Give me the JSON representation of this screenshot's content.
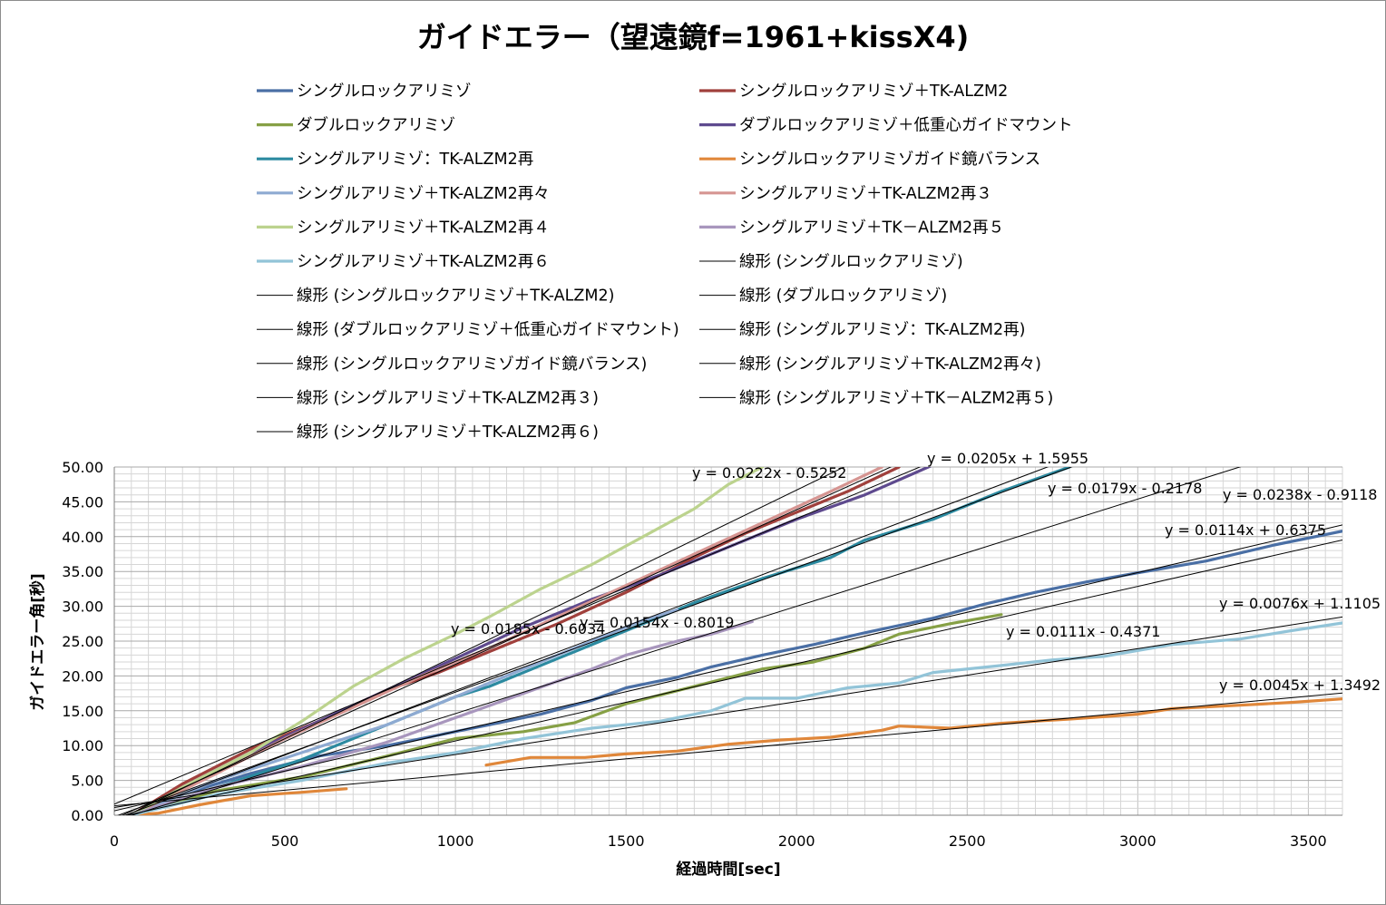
{
  "chart_data": {
    "type": "line",
    "title": "ガイドエラー（望遠鏡f=1961+kissX4)",
    "xlabel": "経過時間[sec]",
    "ylabel": "ガイドエラー角[秒]",
    "xlim": [
      0,
      3600
    ],
    "ylim": [
      0,
      50
    ],
    "x_ticks": [
      "0",
      "500",
      "1000",
      "1500",
      "2000",
      "2500",
      "3000",
      "3500"
    ],
    "y_ticks": [
      "0.00",
      "5.00",
      "10.00",
      "15.00",
      "20.00",
      "25.00",
      "30.00",
      "35.00",
      "40.00",
      "45.00",
      "50.00"
    ],
    "grid": true,
    "legend_position": "top",
    "series": [
      {
        "name": "シングルロックアリミゾ",
        "color": "#4a6fa5",
        "points": [
          [
            50,
            0
          ],
          [
            200,
            3
          ],
          [
            400,
            6
          ],
          [
            600,
            8.5
          ],
          [
            800,
            10
          ],
          [
            1000,
            12
          ],
          [
            1100,
            13
          ],
          [
            1250,
            14.5
          ],
          [
            1400,
            16.5
          ],
          [
            1500,
            18.3
          ],
          [
            1650,
            19.8
          ],
          [
            1750,
            21.3
          ],
          [
            1900,
            23
          ],
          [
            2050,
            24.5
          ],
          [
            2200,
            26.2
          ],
          [
            2400,
            28.3
          ],
          [
            2550,
            30.3
          ],
          [
            2700,
            32
          ],
          [
            2850,
            33.5
          ],
          [
            3000,
            34.8
          ],
          [
            3200,
            36.5
          ],
          [
            3400,
            38.8
          ],
          [
            3600,
            40.8
          ]
        ]
      },
      {
        "name": "シングルロックアリミゾ＋TK-ALZM2",
        "color": "#a0403c",
        "points": [
          [
            50,
            0
          ],
          [
            200,
            4.5
          ],
          [
            400,
            9.5
          ],
          [
            600,
            13.5
          ],
          [
            800,
            18
          ],
          [
            950,
            20.5
          ],
          [
            1100,
            23.5
          ],
          [
            1300,
            27.5
          ],
          [
            1500,
            32
          ],
          [
            1700,
            37
          ],
          [
            1850,
            40.5
          ],
          [
            2000,
            43.5
          ],
          [
            2150,
            46.5
          ],
          [
            2300,
            50
          ]
        ]
      },
      {
        "name": "ダブルロックアリミゾ",
        "color": "#86a045",
        "points": [
          [
            50,
            0
          ],
          [
            300,
            3.5
          ],
          [
            550,
            5.5
          ],
          [
            800,
            8.5
          ],
          [
            1000,
            11
          ],
          [
            1200,
            12
          ],
          [
            1350,
            13.3
          ],
          [
            1500,
            16
          ],
          [
            1700,
            18.5
          ],
          [
            1900,
            21
          ],
          [
            2050,
            22
          ],
          [
            2200,
            24
          ],
          [
            2300,
            26
          ],
          [
            2450,
            27.5
          ],
          [
            2600,
            28.8
          ]
        ]
      },
      {
        "name": "ダブルロックアリミゾ＋低重心ガイドマウント",
        "color": "#5e4a8e",
        "points": [
          [
            50,
            0
          ],
          [
            200,
            4
          ],
          [
            400,
            9
          ],
          [
            600,
            13.5
          ],
          [
            800,
            18
          ],
          [
            1000,
            22.5
          ],
          [
            1200,
            27
          ],
          [
            1400,
            31
          ],
          [
            1600,
            34.5
          ],
          [
            1800,
            38.5
          ],
          [
            2000,
            42.5
          ],
          [
            2200,
            46
          ],
          [
            2400,
            50.3
          ]
        ]
      },
      {
        "name": "シングルアリミゾ：TK-ALZM2再",
        "color": "#2c8aa0",
        "points": [
          [
            50,
            0
          ],
          [
            300,
            4
          ],
          [
            550,
            8
          ],
          [
            800,
            13
          ],
          [
            1000,
            17
          ],
          [
            1100,
            18.5
          ],
          [
            1300,
            22.5
          ],
          [
            1500,
            26.5
          ],
          [
            1700,
            30.5
          ],
          [
            1900,
            34
          ],
          [
            2100,
            37
          ],
          [
            2200,
            39.5
          ],
          [
            2400,
            42.5
          ],
          [
            2600,
            46.5
          ],
          [
            2800,
            50
          ]
        ]
      },
      {
        "name": "シングルロックアリミゾガイド鏡バランス",
        "color": "#e0873a",
        "segments": [
          [
            [
              50,
              0
            ],
            [
              130,
              0.3
            ],
            [
              250,
              1.5
            ],
            [
              400,
              2.8
            ],
            [
              550,
              3.3
            ],
            [
              680,
              3.8
            ]
          ],
          [
            [
              1090,
              7.2
            ],
            [
              1220,
              8.3
            ],
            [
              1380,
              8.3
            ],
            [
              1500,
              8.8
            ],
            [
              1650,
              9.2
            ],
            [
              1800,
              10.2
            ],
            [
              1950,
              10.8
            ],
            [
              2100,
              11.2
            ],
            [
              2250,
              12.2
            ],
            [
              2300,
              12.8
            ],
            [
              2450,
              12.5
            ],
            [
              2600,
              13.2
            ],
            [
              2800,
              13.8
            ],
            [
              3000,
              14.5
            ],
            [
              3100,
              15.3
            ],
            [
              3300,
              15.8
            ],
            [
              3450,
              16.2
            ],
            [
              3600,
              16.7
            ]
          ]
        ]
      },
      {
        "name": "シングルアリミゾ＋TK-ALZM2再々",
        "color": "#8eaad2",
        "points": [
          [
            50,
            0
          ],
          [
            300,
            5
          ],
          [
            550,
            9
          ],
          [
            800,
            13
          ],
          [
            1000,
            17
          ],
          [
            1200,
            21
          ],
          [
            1400,
            25
          ],
          [
            1550,
            28
          ],
          [
            1650,
            29.5
          ]
        ]
      },
      {
        "name": "シングルアリミゾ＋TK-ALZM2再３",
        "color": "#d69592",
        "points": [
          [
            50,
            0
          ],
          [
            300,
            6
          ],
          [
            500,
            11
          ],
          [
            700,
            15.5
          ],
          [
            900,
            20
          ],
          [
            1100,
            24
          ],
          [
            1300,
            28.5
          ],
          [
            1500,
            33
          ],
          [
            1700,
            37.5
          ],
          [
            1900,
            42
          ],
          [
            2100,
            46.5
          ],
          [
            2250,
            50
          ]
        ]
      },
      {
        "name": "シングルアリミゾ＋TK-ALZM2再４",
        "color": "#bcd38e",
        "points": [
          [
            50,
            0
          ],
          [
            200,
            4
          ],
          [
            400,
            9
          ],
          [
            550,
            13.5
          ],
          [
            700,
            18.5
          ],
          [
            850,
            22.5
          ],
          [
            1000,
            26
          ],
          [
            1100,
            28.5
          ],
          [
            1250,
            32.5
          ],
          [
            1400,
            36
          ],
          [
            1550,
            40
          ],
          [
            1700,
            44
          ],
          [
            1800,
            47.5
          ],
          [
            1900,
            50
          ]
        ]
      },
      {
        "name": "シングルアリミゾ＋TK－ALZM2再５",
        "color": "#a896bd",
        "points": [
          [
            50,
            0
          ],
          [
            300,
            4
          ],
          [
            550,
            7
          ],
          [
            800,
            10.5
          ],
          [
            1000,
            14
          ],
          [
            1200,
            17.5
          ],
          [
            1400,
            21
          ],
          [
            1500,
            23
          ],
          [
            1650,
            25
          ],
          [
            1750,
            26
          ],
          [
            1870,
            27.8
          ]
        ]
      },
      {
        "name": "シングルアリミゾ＋TK-ALZM2再６",
        "color": "#92c4d8",
        "points": [
          [
            50,
            0
          ],
          [
            300,
            3
          ],
          [
            550,
            5
          ],
          [
            800,
            7.5
          ],
          [
            1000,
            9
          ],
          [
            1200,
            11
          ],
          [
            1400,
            12.5
          ],
          [
            1600,
            13.5
          ],
          [
            1750,
            15
          ],
          [
            1850,
            16.8
          ],
          [
            2000,
            16.8
          ],
          [
            2150,
            18.3
          ],
          [
            2300,
            19
          ],
          [
            2400,
            20.5
          ],
          [
            2600,
            21.5
          ],
          [
            2750,
            22.3
          ],
          [
            2900,
            22.8
          ],
          [
            3100,
            24.5
          ],
          [
            3300,
            25.3
          ],
          [
            3450,
            26.5
          ],
          [
            3600,
            27.6
          ]
        ]
      }
    ],
    "trendlines": [
      {
        "name": "線形 (シングルロックアリミゾ)",
        "slope": 0.0114,
        "intercept": 0.6375,
        "equation": "y = 0.0114x + 0.6375"
      },
      {
        "name": "線形 (シングルロックアリミゾ＋TK-ALZM2)",
        "slope": 0.0205,
        "intercept": 1.5955,
        "equation": "y = 0.0205x + 1.5955"
      },
      {
        "name": "線形 (ダブルロックアリミゾ)",
        "slope": 0.0111,
        "intercept": -0.4371,
        "equation": "y = 0.0111x - 0.4371"
      },
      {
        "name": "線形 (ダブルロックアリミゾ＋低重心ガイドマウント)",
        "slope": 0.0238,
        "intercept": -0.9118,
        "equation": "y = 0.0238x - 0.9118"
      },
      {
        "name": "線形 (シングルアリミゾ：TK-ALZM2再)",
        "slope": 0.0179,
        "intercept": -0.2178,
        "equation": "y = 0.0179x - 0.2178"
      },
      {
        "name": "線形 (シングルロックアリミゾガイド鏡バランス)",
        "slope": 0.0045,
        "intercept": 1.3492,
        "equation": "y = 0.0045x + 1.3492"
      },
      {
        "name": "線形 (シングルアリミゾ＋TK-ALZM2再々)",
        "slope": 0.0185,
        "intercept": -0.6034,
        "equation": "y = 0.0185x - 0.6034"
      },
      {
        "name": "線形 (シングルアリミゾ＋TK-ALZM2再３)",
        "slope": 0.0222,
        "intercept": -0.5252,
        "equation": "y = 0.0222x - 0.5252"
      },
      {
        "name": "線形 (シングルアリミゾ＋TK－ALZM2再５)",
        "slope": 0.0154,
        "intercept": -0.8019,
        "equation": "y = 0.0154x - 0.8019"
      },
      {
        "name": "線形 (シングルアリミゾ＋TK-ALZM2再６)",
        "slope": 0.0076,
        "intercept": 1.1105,
        "equation": "y = 0.0076x + 1.1105"
      }
    ]
  }
}
